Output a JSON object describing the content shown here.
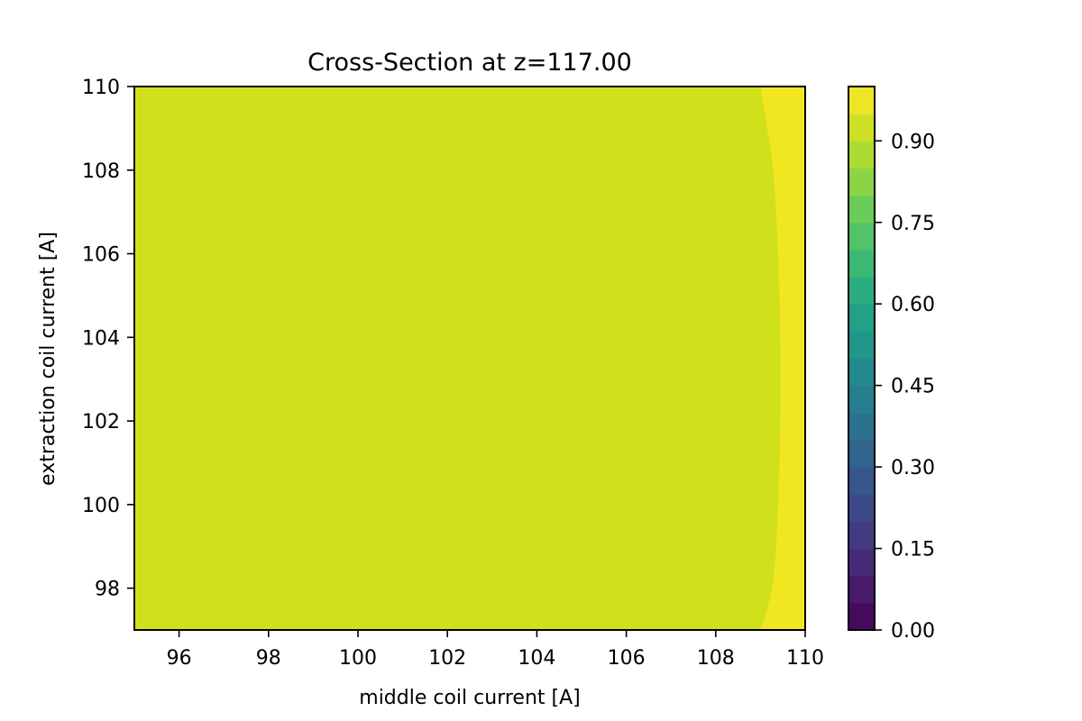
{
  "chart_data": {
    "type": "heatmap",
    "subtype": "filled-contour",
    "title": "Cross-Section at z=117.00",
    "xlabel": "middle coil current [A]",
    "ylabel": "extraction coil current [A]",
    "xlim": [
      95,
      110
    ],
    "ylim": [
      97,
      110
    ],
    "xticks": [
      96,
      98,
      100,
      102,
      104,
      106,
      108,
      110
    ],
    "yticks": [
      98,
      100,
      102,
      104,
      106,
      108,
      110
    ],
    "colormap": "viridis",
    "colorbar": {
      "range": [
        0,
        1
      ],
      "levels": 20,
      "ticks": [
        0.0,
        0.15,
        0.3,
        0.45,
        0.6,
        0.75,
        0.9
      ],
      "tick_labels": [
        "0.00",
        "0.15",
        "0.30",
        "0.45",
        "0.60",
        "0.75",
        "0.90"
      ]
    },
    "regions": [
      {
        "level_range": [
          0.9,
          0.95
        ],
        "color": "#d0e11c",
        "extent_x": [
          95,
          109.3
        ]
      },
      {
        "level_range": [
          0.95,
          1.0
        ],
        "color": "#f0e621",
        "extent_x": [
          109.3,
          110
        ]
      }
    ],
    "boundary": {
      "level": 0.95,
      "points": [
        [
          109.0,
          110
        ],
        [
          109.15,
          109
        ],
        [
          109.3,
          108
        ],
        [
          109.4,
          106
        ],
        [
          109.45,
          104
        ],
        [
          109.45,
          102
        ],
        [
          109.4,
          100
        ],
        [
          109.3,
          98
        ],
        [
          109.0,
          97
        ]
      ]
    },
    "legend": "colorbar-right",
    "grid": false
  }
}
